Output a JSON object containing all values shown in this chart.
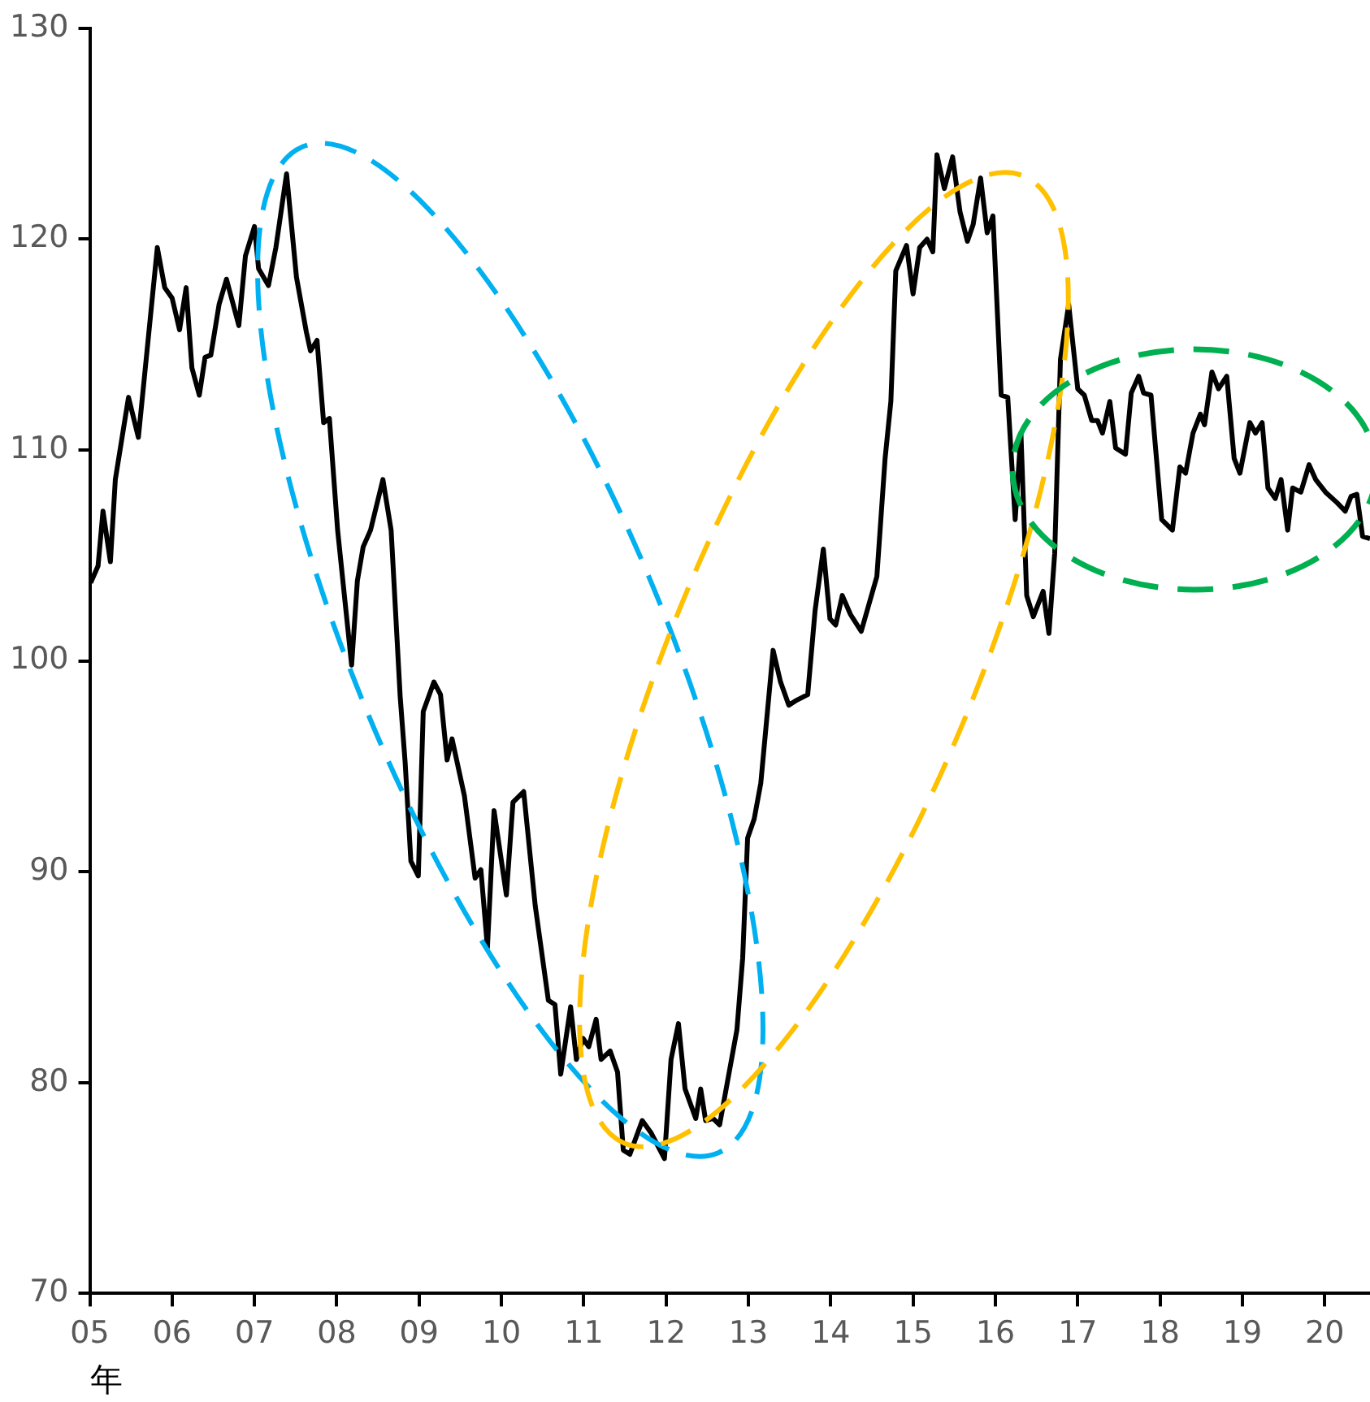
{
  "chart_data": {
    "type": "line",
    "xlabel": "年",
    "xlim": [
      5,
      20.55
    ],
    "xticks": [
      {
        "value": 5,
        "label": "05"
      },
      {
        "value": 6,
        "label": "06"
      },
      {
        "value": 7,
        "label": "07"
      },
      {
        "value": 8,
        "label": "08"
      },
      {
        "value": 9,
        "label": "09"
      },
      {
        "value": 10,
        "label": "10"
      },
      {
        "value": 11,
        "label": "11"
      },
      {
        "value": 12,
        "label": "12"
      },
      {
        "value": 13,
        "label": "13"
      },
      {
        "value": 14,
        "label": "14"
      },
      {
        "value": 15,
        "label": "15"
      },
      {
        "value": 16,
        "label": "16"
      },
      {
        "value": 17,
        "label": "17"
      },
      {
        "value": 18,
        "label": "18"
      },
      {
        "value": 19,
        "label": "19"
      },
      {
        "value": 20,
        "label": "20"
      }
    ],
    "ylim": [
      70,
      130
    ],
    "yticks": [
      70,
      80,
      90,
      100,
      110,
      120,
      130
    ],
    "grid": false,
    "legend": false,
    "marker": "none",
    "line_style": "solid",
    "series": [
      {
        "color": "#000000",
        "x": [
          5.01,
          5.1,
          5.16,
          5.25,
          5.31,
          5.47,
          5.59,
          5.82,
          5.91,
          6.0,
          6.09,
          6.17,
          6.24,
          6.33,
          6.4,
          6.47,
          6.57,
          6.66,
          6.81,
          6.89,
          7.0,
          7.05,
          7.17,
          7.26,
          7.39,
          7.51,
          7.63,
          7.68,
          7.76,
          7.84,
          7.91,
          8.01,
          8.18,
          8.25,
          8.32,
          8.41,
          8.56,
          8.66,
          8.77,
          8.83,
          8.9,
          8.99,
          9.05,
          9.18,
          9.26,
          9.34,
          9.4,
          9.55,
          9.68,
          9.75,
          9.83,
          9.91,
          10.06,
          10.14,
          10.27,
          10.41,
          10.57,
          10.65,
          10.72,
          10.84,
          10.91,
          10.99,
          11.06,
          11.15,
          11.21,
          11.32,
          11.41,
          11.48,
          11.56,
          11.71,
          11.82,
          11.98,
          12.06,
          12.15,
          12.23,
          12.36,
          12.42,
          12.48,
          12.57,
          12.65,
          12.86,
          12.93,
          12.99,
          13.07,
          13.15,
          13.3,
          13.39,
          13.49,
          13.57,
          13.72,
          13.81,
          13.91,
          13.99,
          14.06,
          14.14,
          14.24,
          14.37,
          14.56,
          14.66,
          14.73,
          14.79,
          14.92,
          15.0,
          15.08,
          15.17,
          15.24,
          15.29,
          15.38,
          15.48,
          15.57,
          15.66,
          15.73,
          15.82,
          15.9,
          15.97,
          16.07,
          16.15,
          16.24,
          16.31,
          16.38,
          16.46,
          16.58,
          16.65,
          16.72,
          16.79,
          16.89,
          17.0,
          17.08,
          17.17,
          17.24,
          17.3,
          17.39,
          17.46,
          17.58,
          17.65,
          17.74,
          17.8,
          17.89,
          18.02,
          18.15,
          18.24,
          18.31,
          18.4,
          18.49,
          18.54,
          18.63,
          18.71,
          18.81,
          18.9,
          18.97,
          19.09,
          19.16,
          19.24,
          19.31,
          19.4,
          19.47,
          19.55,
          19.61,
          19.71,
          19.81,
          19.89,
          20.01,
          20.15,
          20.25,
          20.32,
          20.39,
          20.46,
          20.55
        ],
        "values": [
          103.7,
          104.5,
          107.1,
          104.7,
          108.6,
          112.5,
          110.6,
          119.6,
          117.7,
          117.2,
          115.7,
          117.7,
          113.9,
          112.6,
          114.4,
          114.5,
          116.9,
          118.1,
          115.9,
          119.2,
          120.6,
          118.6,
          117.8,
          119.6,
          123.1,
          118.2,
          115.6,
          114.7,
          115.2,
          111.3,
          111.5,
          106.2,
          99.8,
          103.8,
          105.4,
          106.2,
          108.6,
          106.2,
          98.3,
          95.2,
          90.5,
          89.8,
          97.6,
          99.0,
          98.4,
          95.3,
          96.3,
          93.6,
          89.7,
          90.1,
          86.4,
          92.9,
          88.9,
          93.3,
          93.8,
          88.4,
          83.9,
          83.7,
          80.4,
          83.6,
          81.1,
          82.1,
          81.7,
          83.0,
          81.1,
          81.5,
          80.5,
          76.8,
          76.6,
          78.2,
          77.6,
          76.4,
          81.1,
          82.8,
          79.7,
          78.3,
          79.7,
          78.2,
          78.3,
          78.0,
          82.5,
          85.9,
          91.6,
          92.5,
          94.2,
          100.5,
          99.0,
          97.9,
          98.1,
          98.4,
          102.4,
          105.3,
          102.0,
          101.7,
          103.1,
          102.2,
          101.4,
          104.0,
          109.6,
          112.3,
          118.5,
          119.7,
          117.4,
          119.6,
          120.0,
          119.4,
          124.0,
          122.4,
          123.9,
          121.3,
          119.9,
          120.7,
          122.9,
          120.3,
          121.1,
          112.6,
          112.5,
          106.7,
          110.8,
          103.1,
          102.1,
          103.3,
          101.3,
          105.1,
          114.3,
          116.9,
          112.9,
          112.6,
          111.4,
          111.4,
          110.8,
          112.3,
          110.1,
          109.8,
          112.7,
          113.5,
          112.7,
          112.6,
          106.7,
          106.2,
          109.2,
          108.9,
          110.8,
          111.7,
          111.2,
          113.7,
          112.9,
          113.5,
          109.6,
          108.9,
          111.3,
          110.8,
          111.3,
          108.2,
          107.7,
          108.6,
          106.2,
          108.2,
          108.0,
          109.3,
          108.6,
          108.0,
          107.5,
          107.1,
          107.8,
          107.9,
          105.9,
          105.8
        ]
      }
    ]
  }
}
